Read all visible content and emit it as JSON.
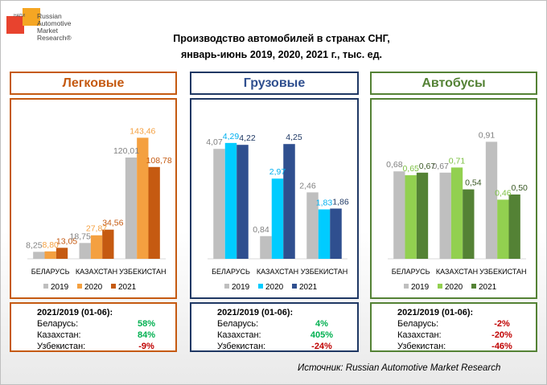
{
  "logo": {
    "tag": "НАПИ",
    "lines": [
      "Russian",
      "Automotive",
      "Market",
      "Research®"
    ]
  },
  "title": {
    "line1": "Производство автомобилей в странах СНГ,",
    "line2": "январь-июнь 2019, 2020, 2021 г., тыс. ед."
  },
  "colors": {
    "series_2019": "#bfbfbf",
    "label_2019": "#808080",
    "passenger": "#c55a11",
    "truck": "#2f4f8f",
    "bus": "#548235"
  },
  "chart_data": [
    {
      "type": "bar",
      "title": "Легковые",
      "categories": [
        "БЕЛАРУСЬ",
        "КАЗАХСТАН",
        "УЗБЕКИСТАН"
      ],
      "ylim": [
        0,
        160
      ],
      "series": [
        {
          "name": "2019",
          "values": [
            8.25,
            18.75,
            120.01
          ],
          "labels": [
            "8,25",
            "18,75",
            "120,01"
          ],
          "color": "#bfbfbf",
          "label_color": "#808080"
        },
        {
          "name": "2020",
          "values": [
            8.8,
            27.87,
            143.46
          ],
          "labels": [
            "8,80",
            "27,87",
            "143,46"
          ],
          "color": "#f4a040",
          "label_color": "#f4a040"
        },
        {
          "name": "2021",
          "values": [
            13.05,
            34.56,
            108.78
          ],
          "labels": [
            "13,05",
            "34,56",
            "108,78"
          ],
          "color": "#c55a11",
          "label_color": "#c55a11"
        }
      ],
      "legend": "bottom"
    },
    {
      "type": "bar",
      "title": "Грузовые",
      "categories": [
        "БЕЛАРУСЬ",
        "КАЗАХСТАН",
        "УЗБЕКИСТАН"
      ],
      "ylim": [
        0,
        5
      ],
      "series": [
        {
          "name": "2019",
          "values": [
            4.07,
            0.84,
            2.46
          ],
          "labels": [
            "4,07",
            "0,84",
            "2,46"
          ],
          "color": "#bfbfbf",
          "label_color": "#808080"
        },
        {
          "name": "2020",
          "values": [
            4.29,
            2.97,
            1.83
          ],
          "labels": [
            "4,29",
            "2,97",
            "1,83"
          ],
          "color": "#00ccff",
          "label_color": "#00b0f0"
        },
        {
          "name": "2021",
          "values": [
            4.22,
            4.25,
            1.86
          ],
          "labels": [
            "4,22",
            "4,25",
            "1,86"
          ],
          "color": "#2f4f8f",
          "label_color": "#1f3864"
        }
      ],
      "legend": "bottom"
    },
    {
      "type": "bar",
      "title": "Автобусы",
      "categories": [
        "БЕЛАРУСЬ",
        "КАЗАХСТАН",
        "УЗБЕКИСТАН"
      ],
      "ylim": [
        0,
        1.05
      ],
      "series": [
        {
          "name": "2019",
          "values": [
            0.68,
            0.67,
            0.91
          ],
          "labels": [
            "0,68",
            "0,67",
            "0,91"
          ],
          "color": "#bfbfbf",
          "label_color": "#808080"
        },
        {
          "name": "2020",
          "values": [
            0.65,
            0.71,
            0.46
          ],
          "labels": [
            "0,65",
            "0,71",
            "0,46"
          ],
          "color": "#92d050",
          "label_color": "#7cc043"
        },
        {
          "name": "2021",
          "values": [
            0.67,
            0.54,
            0.5
          ],
          "labels": [
            "0,67",
            "0,54",
            "0,50"
          ],
          "color": "#548235",
          "label_color": "#385723"
        }
      ],
      "legend": "bottom"
    }
  ],
  "stats": [
    {
      "header": "2021/2019 (01-06):",
      "rows": [
        {
          "label": "Беларусь:",
          "value": "58%",
          "color": "#00b050"
        },
        {
          "label": "Казахстан:",
          "value": "84%",
          "color": "#00b050"
        },
        {
          "label": "Узбекистан:",
          "value": "-9%",
          "color": "#c00000"
        }
      ]
    },
    {
      "header": "2021/2019 (01-06):",
      "rows": [
        {
          "label": "Беларусь:",
          "value": "4%",
          "color": "#00b050"
        },
        {
          "label": "Казахстан:",
          "value": "405%",
          "color": "#00b050"
        },
        {
          "label": "Узбекистан:",
          "value": "-24%",
          "color": "#c00000"
        }
      ]
    },
    {
      "header": "2021/2019 (01-06):",
      "rows": [
        {
          "label": "Беларусь:",
          "value": "-2%",
          "color": "#c00000"
        },
        {
          "label": "Казахстан:",
          "value": "-20%",
          "color": "#c00000"
        },
        {
          "label": "Узбекистан:",
          "value": "-46%",
          "color": "#c00000"
        }
      ]
    }
  ],
  "source": "Источник: Russian Automotive Market Research"
}
